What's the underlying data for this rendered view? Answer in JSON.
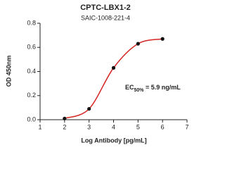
{
  "chart_data": {
    "type": "scatter",
    "title": "CPTC-LBX1-2",
    "subtitle": "SAIC-1008-221-4",
    "x_label": "Log Antibody [pg/mL]",
    "y_label": "OD 450nm",
    "x": [
      2,
      3,
      4,
      5,
      6
    ],
    "values": [
      0.01,
      0.09,
      0.43,
      0.63,
      0.67
    ],
    "color": "#111111",
    "fit_color": "#d42424",
    "xlim": [
      1,
      7
    ],
    "xticks": [
      1,
      2,
      3,
      4,
      5,
      6,
      7
    ],
    "ylim": [
      0,
      0.8
    ],
    "yticks": [
      {
        "value": 0,
        "label": "0.0"
      },
      0.2,
      0.4,
      0.6,
      0.8
    ],
    "annotation": {
      "text": "EC",
      "subscript": "50%",
      "rest": " = 5.9 ng/mL"
    }
  }
}
